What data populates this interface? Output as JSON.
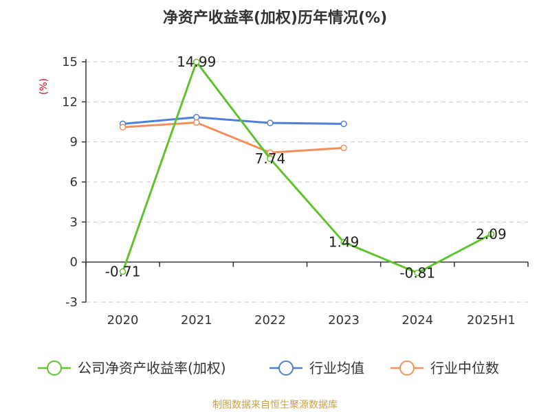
{
  "chart_data": {
    "type": "line",
    "title": "净资产收益率(加权)历年情况(%)",
    "unit_label": "(%)",
    "categories": [
      "2020",
      "2021",
      "2022",
      "2023",
      "2024",
      "2025H1"
    ],
    "ylim": [
      -3,
      15
    ],
    "yticks": [
      -3,
      0,
      3,
      6,
      9,
      12,
      15
    ],
    "grid": true,
    "legend_position": "bottom",
    "series": [
      {
        "name": "公司净资产收益率(加权)",
        "color": "#5ec22a",
        "values": [
          -0.71,
          14.99,
          7.74,
          1.49,
          -0.81,
          2.09
        ],
        "labels": [
          "-0.71",
          "14.99",
          "7.74",
          "1.49",
          "-0.81",
          "2.09"
        ]
      },
      {
        "name": "行业均值",
        "color": "#4e7fd9",
        "values": [
          10.35,
          10.85,
          10.42,
          10.35,
          null,
          null
        ]
      },
      {
        "name": "行业中位数",
        "color": "#f28f5a",
        "values": [
          10.1,
          10.45,
          8.2,
          8.55,
          null,
          null
        ]
      }
    ],
    "source": "制图数据来自恒生聚源数据库"
  }
}
